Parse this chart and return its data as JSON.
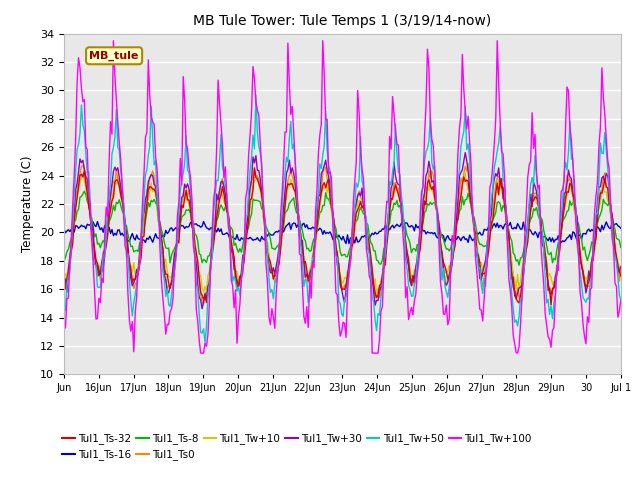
{
  "title": "MB Tule Tower: Tule Temps 1 (3/19/14-now)",
  "ylabel": "Temperature (C)",
  "ylim": [
    10,
    34
  ],
  "yticks": [
    10,
    12,
    14,
    16,
    18,
    20,
    22,
    24,
    26,
    28,
    30,
    32,
    34
  ],
  "plot_bg_color": "#e8e8e8",
  "fig_bg_color": "#ffffff",
  "legend_label": "MB_tule",
  "legend_bg": "#ffffcc",
  "legend_border": "#aa8800",
  "series": [
    {
      "name": "Tul1_Ts-32",
      "color": "#dd0000",
      "lw": 1.0
    },
    {
      "name": "Tul1_Ts-16",
      "color": "#0000cc",
      "lw": 1.0
    },
    {
      "name": "Tul1_Ts-8",
      "color": "#00bb00",
      "lw": 1.0
    },
    {
      "name": "Tul1_Ts0",
      "color": "#ff8800",
      "lw": 1.0
    },
    {
      "name": "Tul1_Tw+10",
      "color": "#cccc00",
      "lw": 1.0
    },
    {
      "name": "Tul1_Tw+30",
      "color": "#9900bb",
      "lw": 1.0
    },
    {
      "name": "Tul1_Tw+50",
      "color": "#00cccc",
      "lw": 1.0
    },
    {
      "name": "Tul1_Tw+100",
      "color": "#ff00ff",
      "lw": 1.0
    }
  ],
  "xtick_labels": [
    "Jun",
    "16Jun",
    "17Jun",
    "18Jun",
    "19Jun",
    "20Jun",
    "21Jun",
    "22Jun",
    "23Jun",
    "24Jun",
    "25Jun",
    "26Jun",
    "27Jun",
    "28Jun",
    "29Jun",
    "30",
    "Jul 1"
  ],
  "n_days": 16,
  "pts_per_day": 24
}
